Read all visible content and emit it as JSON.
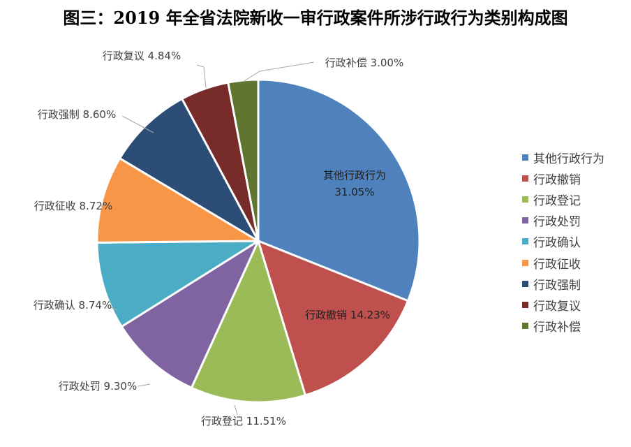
{
  "title": "图三：2019 年全省法院新收一审行政案件所涉行政行为类别构成图",
  "chart_data": {
    "type": "pie",
    "title": "图三：2019 年全省法院新收一审行政案件所涉行政行为类别构成图",
    "legend_position": "right",
    "slices": [
      {
        "name": "其他行政行为",
        "value": 31.05,
        "label": "31.05%",
        "color": "#4F81BD"
      },
      {
        "name": "行政撤销",
        "value": 14.23,
        "label": "14.23%",
        "color": "#C0504D"
      },
      {
        "name": "行政登记",
        "value": 11.51,
        "label": "11.51%",
        "color": "#9BBB59"
      },
      {
        "name": "行政处罚",
        "value": 9.3,
        "label": "9.30%",
        "color": "#8064A2"
      },
      {
        "name": "行政确认",
        "value": 8.74,
        "label": "8.74%",
        "color": "#4BACC6"
      },
      {
        "name": "行政征收",
        "value": 8.72,
        "label": "8.72%",
        "color": "#F79646"
      },
      {
        "name": "行政强制",
        "value": 8.6,
        "label": "8.60%",
        "color": "#2C4D75"
      },
      {
        "name": "行政复议",
        "value": 4.84,
        "label": "4.84%",
        "color": "#772C2A"
      },
      {
        "name": "行政补偿",
        "value": 3.0,
        "label": "3.00%",
        "color": "#5F7530"
      }
    ]
  }
}
